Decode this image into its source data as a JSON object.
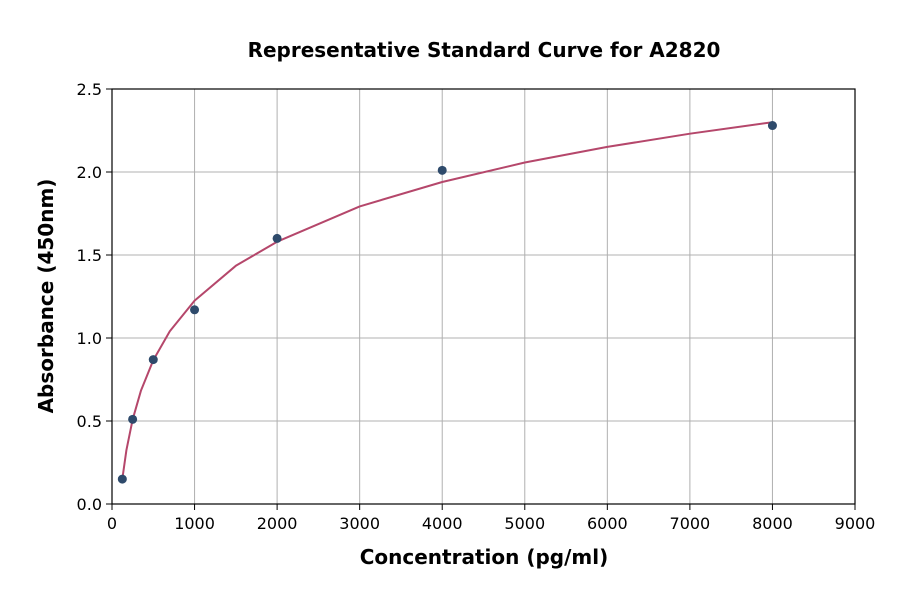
{
  "chart_data": {
    "type": "scatter",
    "title": "Representative Standard Curve for A2820",
    "xlabel": "Concentration (pg/ml)",
    "ylabel": "Absorbance (450nm)",
    "xlim": [
      0,
      9000
    ],
    "ylim": [
      0,
      2.5
    ],
    "xticks": [
      "0",
      "1000",
      "2000",
      "3000",
      "4000",
      "5000",
      "6000",
      "7000",
      "8000",
      "9000"
    ],
    "yticks": [
      "0.0",
      "0.5",
      "1.0",
      "1.5",
      "2.0",
      "2.5"
    ],
    "grid": true,
    "points": {
      "x": [
        125,
        250,
        500,
        1000,
        2000,
        4000,
        8000
      ],
      "y": [
        0.15,
        0.51,
        0.87,
        1.17,
        1.6,
        2.01,
        2.28
      ]
    },
    "fit_curve": {
      "x": [
        125,
        175,
        250,
        350,
        500,
        700,
        1000,
        1500,
        2000,
        3000,
        4000,
        5000,
        6000,
        7000,
        8000
      ],
      "y": [
        0.15,
        0.324,
        0.508,
        0.682,
        0.867,
        1.041,
        1.225,
        1.435,
        1.58,
        1.793,
        1.94,
        2.057,
        2.151,
        2.231,
        2.3
      ]
    },
    "colors": {
      "points": "#2e4a6b",
      "curve": "#b5476b",
      "grid": "#b0b0b0"
    }
  }
}
